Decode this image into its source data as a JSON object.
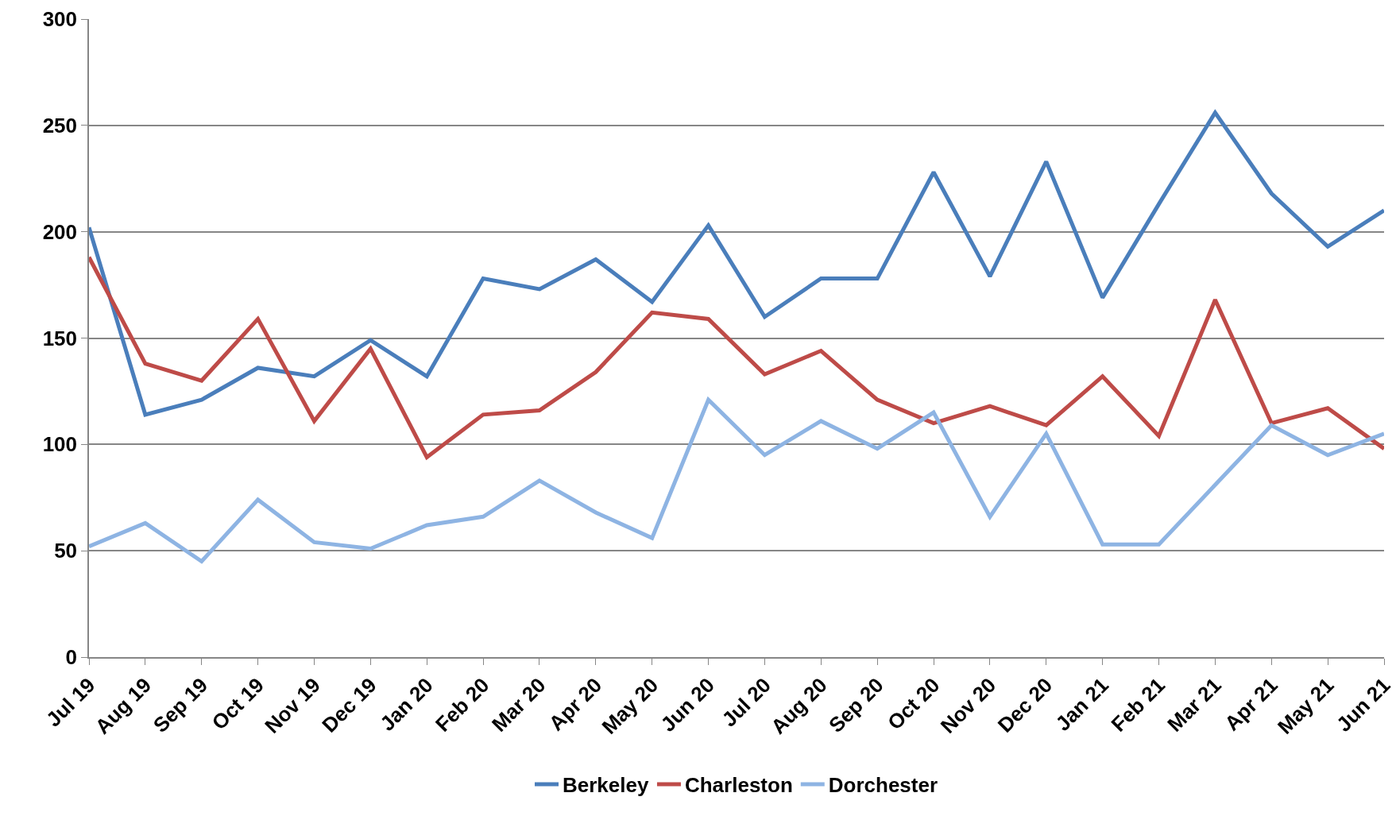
{
  "chart_data": {
    "type": "line",
    "categories": [
      "Jul 19",
      "Aug 19",
      "Sep 19",
      "Oct 19",
      "Nov 19",
      "Dec 19",
      "Jan 20",
      "Feb 20",
      "Mar 20",
      "Apr 20",
      "May 20",
      "Jun 20",
      "Jul 20",
      "Aug 20",
      "Sep 20",
      "Oct 20",
      "Nov 20",
      "Dec 20",
      "Jan 21",
      "Feb 21",
      "Mar 21",
      "Apr 21",
      "May 21",
      "Jun 21"
    ],
    "series": [
      {
        "name": "Berkeley",
        "color": "#4a7ebb",
        "values": [
          202,
          114,
          121,
          136,
          132,
          149,
          132,
          178,
          173,
          187,
          167,
          203,
          160,
          178,
          178,
          228,
          179,
          233,
          169,
          213,
          256,
          218,
          193,
          210
        ]
      },
      {
        "name": "Charleston",
        "color": "#be4b48",
        "values": [
          188,
          138,
          130,
          159,
          111,
          145,
          94,
          114,
          116,
          134,
          162,
          159,
          133,
          144,
          121,
          110,
          118,
          109,
          132,
          104,
          168,
          110,
          117,
          98
        ]
      },
      {
        "name": "Dorchester",
        "color": "#8eb4e3",
        "values": [
          52,
          63,
          45,
          74,
          54,
          51,
          62,
          66,
          83,
          68,
          56,
          121,
          95,
          111,
          98,
          115,
          66,
          105,
          53,
          53,
          81,
          109,
          95,
          105
        ]
      }
    ],
    "ylim": [
      0,
      300
    ],
    "yticks": [
      0,
      50,
      100,
      150,
      200,
      250,
      300
    ],
    "grid": "y",
    "legend": "bottom",
    "marker": "none",
    "line_style": "solid"
  }
}
